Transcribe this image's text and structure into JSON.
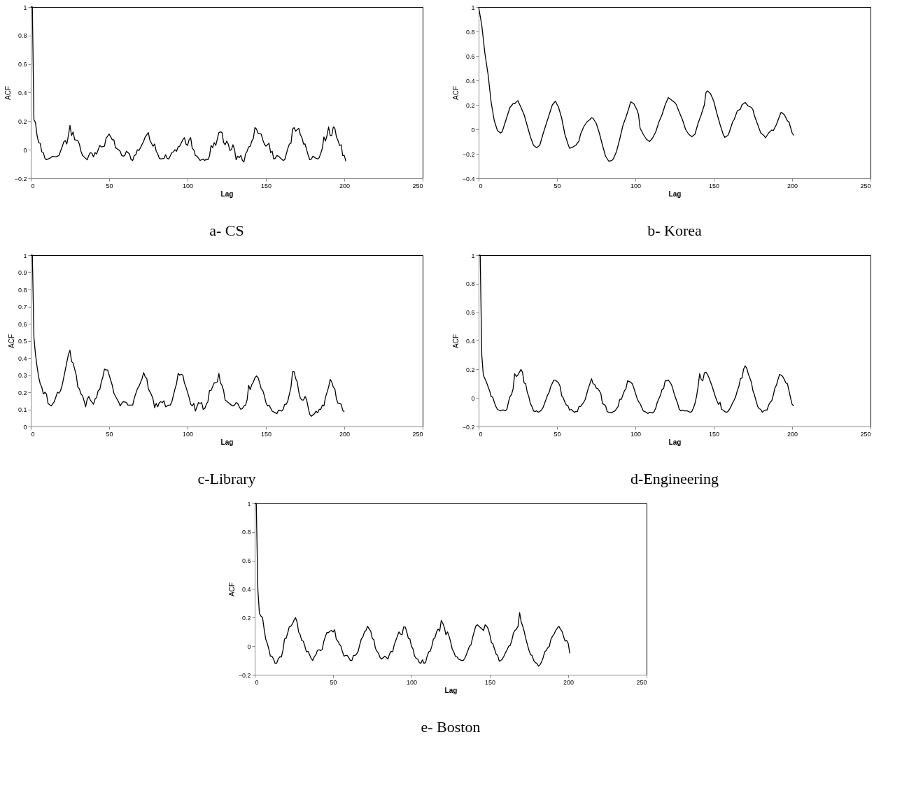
{
  "chart_data": [
    {
      "type": "line",
      "title": "a- CS",
      "xlabel": "Lag",
      "ylabel": "ACF",
      "xlim": [
        0,
        250
      ],
      "xticks": [
        0,
        50,
        100,
        150,
        200,
        250
      ],
      "ylim": [
        -0.2,
        1
      ],
      "yticks": [
        -0.2,
        0,
        0.2,
        0.4,
        0.6,
        0.8,
        1
      ],
      "x": [
        0,
        1,
        2,
        3,
        4,
        5,
        6,
        7,
        8,
        9,
        10,
        12,
        14,
        16,
        18,
        20,
        21,
        22,
        23,
        24,
        25,
        26,
        27,
        28,
        30,
        31,
        32,
        33,
        34,
        36,
        37,
        38,
        39,
        40,
        41,
        42,
        44,
        45,
        47,
        48,
        50,
        52,
        53,
        54,
        56,
        57,
        58,
        59,
        60,
        61,
        62,
        63,
        64,
        65,
        66,
        67,
        68,
        69,
        70,
        72,
        73,
        75,
        76,
        77,
        78,
        79,
        80,
        81,
        82,
        83,
        85,
        86,
        87,
        88,
        90,
        91,
        92,
        93,
        94,
        95,
        97,
        98,
        99,
        100,
        101,
        102,
        103,
        104,
        105,
        106,
        108,
        110,
        111,
        112,
        113,
        114,
        115,
        116,
        117,
        118,
        120,
        121,
        122,
        123,
        124,
        125,
        126,
        127,
        128,
        129,
        130,
        131,
        132,
        133,
        134,
        135,
        136,
        137,
        138,
        139,
        140,
        141,
        142,
        143,
        144,
        145,
        147,
        148,
        149,
        150,
        151,
        152,
        153,
        154,
        155,
        156,
        157,
        158,
        160,
        161,
        162,
        164,
        165,
        166,
        167,
        168,
        169,
        170,
        171,
        172,
        173,
        174,
        175,
        176,
        177,
        178,
        179,
        180,
        182,
        183,
        184,
        185,
        186,
        187,
        188,
        189,
        190,
        191,
        192,
        193,
        194,
        195,
        196,
        197,
        198,
        199,
        200,
        201
      ],
      "series": [
        {
          "color": "#000000",
          "values": [
            1,
            1,
            0.21,
            0.19,
            0.1,
            0.05,
            0.045,
            -0.015,
            -0.02,
            -0.06,
            -0.07,
            -0.06,
            -0.045,
            -0.05,
            -0.04,
            0.02,
            0.055,
            0.065,
            0.04,
            0.1,
            0.17,
            0.1,
            0.125,
            0.07,
            0.065,
            0.04,
            -0.01,
            -0.04,
            -0.05,
            -0.07,
            -0.04,
            -0.02,
            -0.025,
            -0.05,
            -0.02,
            -0.03,
            0.03,
            0.02,
            0.025,
            0.08,
            0.11,
            0.07,
            0.07,
            0.015,
            0,
            -0.01,
            -0.04,
            -0.045,
            -0.04,
            -0.01,
            -0.02,
            -0.03,
            -0.07,
            -0.075,
            -0.04,
            -0.035,
            0,
            -0.005,
            0.015,
            0.06,
            0.09,
            0.12,
            0.065,
            0.045,
            0.025,
            0.04,
            -0.01,
            -0.03,
            -0.06,
            -0.065,
            -0.06,
            -0.035,
            -0.06,
            -0.065,
            -0.02,
            -0.015,
            0,
            -0.01,
            0.02,
            0.025,
            0.07,
            0.085,
            0.04,
            0.03,
            0.07,
            0.085,
            0.01,
            0,
            -0.04,
            -0.045,
            -0.075,
            -0.065,
            -0.075,
            -0.065,
            -0.07,
            -0.045,
            0.03,
            0.015,
            0.05,
            0.03,
            0.12,
            0.125,
            0.12,
            0.05,
            0.035,
            0.06,
            0.04,
            -0.005,
            0,
            0.035,
            0,
            -0.07,
            -0.045,
            -0.055,
            -0.04,
            -0.075,
            -0.085,
            -0.03,
            -0.01,
            0.02,
            0.025,
            0.06,
            0.08,
            0.155,
            0.145,
            0.115,
            0.11,
            0.07,
            0.04,
            0.025,
            0.035,
            0.045,
            -0.02,
            -0.01,
            -0.065,
            -0.06,
            -0.04,
            -0.045,
            -0.065,
            -0.075,
            -0.07,
            0.01,
            0.04,
            0.045,
            0.145,
            0.155,
            0.13,
            0.14,
            0.15,
            0.105,
            0.085,
            0.04,
            0.04,
            0,
            -0.04,
            -0.07,
            -0.065,
            -0.045,
            -0.06,
            -0.065,
            -0.055,
            -0.025,
            0.01,
            0.09,
            0.06,
            0.1,
            0.16,
            0.1,
            0.1,
            0.16,
            0.15,
            0.09,
            0.065,
            0.03,
            0.035,
            -0.04,
            -0.04,
            -0.08
          ]
        }
      ]
    },
    {
      "type": "line",
      "title": "b- Korea",
      "xlabel": "Lag",
      "ylabel": "ACF",
      "xlim": [
        0,
        250
      ],
      "xticks": [
        0,
        50,
        100,
        150,
        200,
        250
      ],
      "ylim": [
        -0.4,
        1
      ],
      "yticks": [
        -0.4,
        -0.2,
        0,
        0.2,
        0.4,
        0.6,
        0.8,
        1
      ],
      "x": [
        0,
        2,
        4,
        6,
        8,
        10,
        12,
        14,
        15,
        16,
        18,
        20,
        22,
        23,
        25,
        27,
        29,
        31,
        33,
        35,
        37,
        39,
        41,
        43,
        45,
        47,
        49,
        51,
        53,
        55,
        57,
        58,
        60,
        62,
        64,
        65,
        67,
        69,
        71,
        72,
        73,
        75,
        77,
        79,
        81,
        83,
        85,
        86,
        88,
        90,
        92,
        94,
        96,
        97,
        99,
        101,
        102,
        103,
        105,
        107,
        109,
        111,
        113,
        115,
        117,
        119,
        121,
        123,
        125,
        126,
        128,
        130,
        132,
        134,
        136,
        138,
        140,
        142,
        144,
        145,
        146,
        148,
        150,
        152,
        154,
        156,
        157,
        159,
        160,
        162,
        163,
        165,
        167,
        168,
        170,
        172,
        174,
        175,
        176,
        178,
        180,
        182,
        183,
        185,
        187,
        188,
        190,
        192,
        193,
        195,
        197,
        198,
        200,
        201
      ],
      "series": [
        {
          "color": "#000000",
          "values": [
            1,
            0.85,
            0.62,
            0.45,
            0.22,
            0.07,
            -0.01,
            -0.03,
            -0.02,
            0.02,
            0.1,
            0.18,
            0.21,
            0.21,
            0.235,
            0.18,
            0.12,
            0.03,
            -0.06,
            -0.13,
            -0.15,
            -0.13,
            -0.04,
            0.04,
            0.12,
            0.2,
            0.23,
            0.18,
            0.09,
            -0.04,
            -0.12,
            -0.155,
            -0.145,
            -0.13,
            -0.095,
            -0.04,
            0.02,
            0.06,
            0.08,
            0.095,
            0.09,
            0.05,
            -0.03,
            -0.13,
            -0.22,
            -0.26,
            -0.255,
            -0.24,
            -0.18,
            -0.08,
            0.03,
            0.1,
            0.18,
            0.225,
            0.21,
            0.16,
            0.12,
            0.01,
            -0.04,
            -0.08,
            -0.1,
            -0.07,
            -0.02,
            0.06,
            0.12,
            0.2,
            0.26,
            0.24,
            0.22,
            0.205,
            0.14,
            0.08,
            0,
            -0.04,
            -0.06,
            -0.04,
            0.05,
            0.12,
            0.2,
            0.3,
            0.315,
            0.29,
            0.23,
            0.13,
            0.04,
            -0.04,
            -0.065,
            -0.05,
            -0.02,
            0.06,
            0.08,
            0.15,
            0.165,
            0.2,
            0.22,
            0.19,
            0.18,
            0.16,
            0.11,
            0.04,
            -0.03,
            -0.05,
            -0.07,
            -0.03,
            -0.005,
            -0.01,
            0.04,
            0.11,
            0.14,
            0.12,
            0.07,
            0.06,
            -0.03,
            -0.05
          ]
        }
      ]
    },
    {
      "type": "line",
      "title": "c-Library",
      "xlabel": "Lag",
      "ylabel": "ACF",
      "xlim": [
        0,
        250
      ],
      "xticks": [
        0,
        50,
        100,
        150,
        200,
        250
      ],
      "ylim": [
        0,
        1
      ],
      "yticks": [
        0,
        0.1,
        0.2,
        0.3,
        0.4,
        0.5,
        0.6,
        0.7,
        0.8,
        0.9,
        1
      ],
      "x": [
        0,
        1,
        2,
        3,
        4,
        5,
        6,
        7,
        8,
        9,
        10,
        11,
        13,
        15,
        17,
        18,
        19,
        20,
        22,
        24,
        25,
        26,
        27,
        29,
        30,
        31,
        32,
        33,
        34,
        35,
        36,
        37,
        38,
        40,
        41,
        42,
        43,
        44,
        45,
        46,
        47,
        48,
        49,
        50,
        52,
        53,
        55,
        56,
        57,
        58,
        59,
        61,
        62,
        63,
        65,
        66,
        68,
        69,
        71,
        72,
        73,
        74,
        75,
        77,
        78,
        79,
        80,
        81,
        82,
        83,
        84,
        85,
        86,
        88,
        89,
        90,
        92,
        93,
        94,
        95,
        96,
        97,
        98,
        99,
        101,
        102,
        103,
        104,
        105,
        106,
        107,
        108,
        109,
        110,
        111,
        112,
        113,
        114,
        115,
        117,
        118,
        119,
        120,
        121,
        122,
        123,
        124,
        126,
        128,
        129,
        130,
        131,
        132,
        133,
        134,
        135,
        136,
        137,
        138,
        139,
        140,
        141,
        142,
        143,
        144,
        145,
        146,
        147,
        148,
        149,
        150,
        151,
        152,
        154,
        155,
        156,
        157,
        158,
        159,
        160,
        161,
        162,
        163,
        164,
        165,
        166,
        167,
        168,
        169,
        170,
        171,
        172,
        173,
        174,
        175,
        176,
        177,
        178,
        179,
        181,
        182,
        183,
        184,
        185,
        186,
        187,
        188,
        190,
        191,
        192,
        193,
        194,
        195,
        196,
        197,
        198,
        199,
        200
      ],
      "series": [
        {
          "color": "#000000",
          "values": [
            1,
            1,
            0.52,
            0.42,
            0.35,
            0.29,
            0.25,
            0.23,
            0.19,
            0.2,
            0.19,
            0.135,
            0.12,
            0.145,
            0.2,
            0.195,
            0.21,
            0.24,
            0.33,
            0.42,
            0.445,
            0.38,
            0.37,
            0.3,
            0.23,
            0.22,
            0.19,
            0.18,
            0.15,
            0.115,
            0.16,
            0.175,
            0.155,
            0.13,
            0.16,
            0.17,
            0.21,
            0.215,
            0.26,
            0.29,
            0.335,
            0.33,
            0.33,
            0.3,
            0.24,
            0.195,
            0.16,
            0.145,
            0.12,
            0.135,
            0.145,
            0.14,
            0.125,
            0.125,
            0.125,
            0.165,
            0.22,
            0.235,
            0.28,
            0.315,
            0.29,
            0.28,
            0.22,
            0.185,
            0.16,
            0.11,
            0.135,
            0.115,
            0.14,
            0.145,
            0.14,
            0.15,
            0.115,
            0.125,
            0.125,
            0.145,
            0.22,
            0.25,
            0.31,
            0.3,
            0.305,
            0.3,
            0.255,
            0.23,
            0.17,
            0.13,
            0.12,
            0.135,
            0.09,
            0.115,
            0.14,
            0.135,
            0.14,
            0.1,
            0.105,
            0.13,
            0.145,
            0.21,
            0.21,
            0.255,
            0.255,
            0.26,
            0.31,
            0.255,
            0.24,
            0.21,
            0.155,
            0.14,
            0.125,
            0.12,
            0.125,
            0.14,
            0.135,
            0.115,
            0.1,
            0.105,
            0.12,
            0.125,
            0.155,
            0.24,
            0.215,
            0.245,
            0.26,
            0.285,
            0.295,
            0.285,
            0.255,
            0.22,
            0.21,
            0.18,
            0.14,
            0.12,
            0.125,
            0.09,
            0.085,
            0.08,
            0.075,
            0.095,
            0.095,
            0.09,
            0.1,
            0.13,
            0.13,
            0.15,
            0.19,
            0.23,
            0.32,
            0.32,
            0.28,
            0.26,
            0.2,
            0.165,
            0.155,
            0.155,
            0.175,
            0.155,
            0.11,
            0.07,
            0.06,
            0.075,
            0.09,
            0.08,
            0.1,
            0.1,
            0.125,
            0.12,
            0.17,
            0.23,
            0.275,
            0.26,
            0.23,
            0.22,
            0.16,
            0.135,
            0.135,
            0.13,
            0.095,
            0.085
          ]
        }
      ]
    },
    {
      "type": "line",
      "title": "d-Engineering",
      "xlabel": "Lag",
      "ylabel": "ACF",
      "xlim": [
        0,
        250
      ],
      "xticks": [
        0,
        50,
        100,
        150,
        200,
        250
      ],
      "ylim": [
        -0.2,
        1
      ],
      "yticks": [
        -0.2,
        0,
        0.2,
        0.4,
        0.6,
        0.8,
        1
      ],
      "x": [
        0,
        1,
        2,
        3,
        5,
        7,
        8,
        9,
        10,
        11,
        12,
        14,
        15,
        16,
        17,
        18,
        19,
        20,
        21,
        22,
        23,
        24,
        25,
        27,
        28,
        29,
        30,
        31,
        32,
        33,
        34,
        35,
        36,
        37,
        38,
        39,
        40,
        41,
        42,
        43,
        44,
        45,
        46,
        48,
        49,
        50,
        51,
        52,
        53,
        54,
        55,
        56,
        57,
        58,
        59,
        60,
        61,
        62,
        63,
        64,
        65,
        67,
        68,
        69,
        70,
        71,
        72,
        73,
        74,
        75,
        76,
        77,
        78,
        79,
        80,
        81,
        82,
        83,
        84,
        85,
        86,
        87,
        88,
        89,
        90,
        91,
        92,
        93,
        94,
        95,
        96,
        97,
        98,
        99,
        100,
        101,
        102,
        103,
        104,
        105,
        106,
        107,
        108,
        109,
        110,
        111,
        112,
        113,
        114,
        115,
        116,
        117,
        118,
        119,
        120,
        121,
        122,
        123,
        124,
        125,
        126,
        127,
        128,
        129,
        130,
        131,
        132,
        133,
        134,
        135,
        136,
        137,
        138,
        139,
        140,
        141,
        142,
        143,
        144,
        145,
        146,
        147,
        148,
        149,
        150,
        151,
        152,
        153,
        154,
        155,
        156,
        157,
        158,
        159,
        160,
        161,
        162,
        163,
        164,
        165,
        166,
        167,
        168,
        169,
        170,
        171,
        172,
        173,
        174,
        175,
        176,
        177,
        178,
        179,
        180,
        181,
        182,
        183,
        184,
        185,
        186,
        187,
        188,
        189,
        190,
        191,
        192,
        193,
        194,
        195,
        196,
        197,
        198,
        199,
        200,
        201
      ],
      "series": [
        {
          "color": "#000000",
          "values": [
            1,
            1,
            0.3,
            0.16,
            0.11,
            0.05,
            0.01,
            0.005,
            -0.03,
            -0.06,
            -0.08,
            -0.09,
            -0.085,
            -0.085,
            -0.09,
            -0.08,
            -0.03,
            0.01,
            0.025,
            0.065,
            0.17,
            0.15,
            0.16,
            0.2,
            0.18,
            0.105,
            0.1,
            0.04,
            0.01,
            -0.04,
            -0.06,
            -0.09,
            -0.095,
            -0.09,
            -0.1,
            -0.095,
            -0.085,
            -0.07,
            -0.04,
            -0.01,
            0.02,
            0.04,
            0.08,
            0.125,
            0.125,
            0.115,
            0.105,
            0.08,
            0.015,
            0,
            -0.03,
            -0.05,
            -0.055,
            -0.085,
            -0.08,
            -0.09,
            -0.1,
            -0.095,
            -0.095,
            -0.06,
            -0.06,
            -0.03,
            -0.01,
            0.03,
            0.07,
            0.1,
            0.135,
            0.1,
            0.095,
            0.07,
            0.065,
            0.05,
            0.03,
            -0.04,
            -0.045,
            -0.055,
            -0.095,
            -0.1,
            -0.1,
            -0.105,
            -0.095,
            -0.09,
            -0.075,
            -0.06,
            -0.01,
            -0.01,
            0.02,
            0.05,
            0.065,
            0.12,
            0.115,
            0.11,
            0.1,
            0.07,
            0.035,
            0,
            -0.025,
            -0.04,
            -0.065,
            -0.09,
            -0.095,
            -0.1,
            -0.11,
            -0.1,
            -0.1,
            -0.105,
            -0.095,
            -0.07,
            -0.03,
            -0.005,
            0.02,
            0.06,
            0.065,
            0.12,
            0.12,
            0.125,
            0.11,
            0.095,
            0.06,
            0.02,
            -0.01,
            -0.04,
            -0.08,
            -0.09,
            -0.085,
            -0.09,
            -0.09,
            -0.09,
            -0.095,
            -0.1,
            -0.095,
            -0.07,
            -0.04,
            0.01,
            0.08,
            0.17,
            0.13,
            0.12,
            0.175,
            0.18,
            0.165,
            0.14,
            0.11,
            0.08,
            0.045,
            0.01,
            -0.02,
            -0.045,
            -0.03,
            -0.08,
            -0.085,
            -0.095,
            -0.1,
            -0.095,
            -0.08,
            -0.06,
            -0.035,
            -0.015,
            0.01,
            0.05,
            0.08,
            0.135,
            0.14,
            0.2,
            0.225,
            0.21,
            0.17,
            0.14,
            0.11,
            0.05,
            0.02,
            -0.02,
            -0.06,
            -0.075,
            -0.08,
            -0.1,
            -0.09,
            -0.085,
            -0.085,
            -0.05,
            -0.03,
            -0.02,
            0.02,
            0.07,
            0.09,
            0.13,
            0.165,
            0.16,
            0.15,
            0.13,
            0.105,
            0.1,
            0.05,
            0,
            -0.045,
            -0.055
          ]
        }
      ]
    },
    {
      "type": "line",
      "title": "e- Boston",
      "xlabel": "Lag",
      "ylabel": "ACF",
      "xlim": [
        0,
        250
      ],
      "xticks": [
        0,
        50,
        100,
        150,
        200,
        250
      ],
      "ylim": [
        -0.2,
        1
      ],
      "yticks": [
        -0.2,
        0,
        0.2,
        0.4,
        0.6,
        0.8,
        1
      ],
      "x": [
        0,
        1,
        2,
        3,
        4,
        5,
        6,
        7,
        8,
        9,
        10,
        11,
        12,
        13,
        14,
        15,
        16,
        17,
        18,
        19,
        20,
        21,
        22,
        23,
        24,
        25,
        26,
        27,
        28,
        29,
        30,
        31,
        32,
        33,
        34,
        35,
        36,
        37,
        38,
        39,
        40,
        41,
        42,
        43,
        44,
        45,
        46,
        47,
        48,
        49,
        50,
        51,
        52,
        53,
        54,
        55,
        56,
        57,
        58,
        59,
        60,
        61,
        62,
        63,
        64,
        65,
        66,
        67,
        68,
        69,
        70,
        71,
        72,
        73,
        74,
        75,
        76,
        77,
        78,
        79,
        80,
        81,
        82,
        83,
        84,
        85,
        86,
        87,
        88,
        89,
        90,
        91,
        92,
        93,
        94,
        95,
        96,
        97,
        98,
        99,
        100,
        101,
        102,
        103,
        104,
        105,
        106,
        107,
        108,
        109,
        110,
        111,
        112,
        113,
        114,
        115,
        116,
        117,
        118,
        119,
        120,
        121,
        122,
        123,
        124,
        125,
        126,
        127,
        128,
        129,
        130,
        131,
        132,
        133,
        134,
        135,
        136,
        137,
        138,
        139,
        140,
        141,
        142,
        146,
        147,
        148,
        149,
        150,
        151,
        152,
        153,
        154,
        155,
        156,
        157,
        158,
        159,
        160,
        161,
        162,
        163,
        164,
        165,
        166,
        167,
        168,
        169,
        170,
        171,
        172,
        173,
        174,
        175,
        176,
        177,
        178,
        179,
        180,
        181,
        182,
        183,
        184,
        185,
        186,
        187,
        188,
        189,
        190,
        191,
        192,
        193,
        194,
        195,
        196,
        197,
        198,
        199,
        200,
        201
      ],
      "series": [
        {
          "color": "#000000",
          "values": [
            1,
            1,
            0.4,
            0.23,
            0.21,
            0.2,
            0.12,
            0.05,
            0.02,
            -0.02,
            -0.07,
            -0.07,
            -0.09,
            -0.12,
            -0.12,
            -0.09,
            -0.075,
            -0.075,
            -0.03,
            0.05,
            0.055,
            0.09,
            0.135,
            0.14,
            0.155,
            0.18,
            0.2,
            0.17,
            0.1,
            0.08,
            0.04,
            0.035,
            0,
            -0.04,
            -0.035,
            -0.06,
            -0.085,
            -0.1,
            -0.075,
            -0.06,
            -0.03,
            -0.025,
            -0.03,
            -0.025,
            0.03,
            0.065,
            0.095,
            0.095,
            0.105,
            0.11,
            0.1,
            0.115,
            0.05,
            0.035,
            0.015,
            0,
            -0.04,
            -0.07,
            -0.065,
            -0.065,
            -0.08,
            -0.1,
            -0.1,
            -0.065,
            -0.065,
            -0.055,
            -0.035,
            0.01,
            0.05,
            0.065,
            0.1,
            0.11,
            0.14,
            0.12,
            0.105,
            0.055,
            0.045,
            -0.015,
            -0.035,
            -0.05,
            -0.08,
            -0.09,
            -0.08,
            -0.07,
            -0.08,
            -0.09,
            -0.055,
            -0.035,
            -0.04,
            0.01,
            0.04,
            0.07,
            0.1,
            0.085,
            0.08,
            0.135,
            0.135,
            0.1,
            0.055,
            0.05,
            0,
            -0.02,
            -0.07,
            -0.085,
            -0.09,
            -0.115,
            -0.12,
            -0.095,
            -0.12,
            -0.115,
            -0.07,
            -0.04,
            -0.035,
            0,
            0.05,
            0.06,
            0.1,
            0.12,
            0.105,
            0.18,
            0.16,
            0.13,
            0.08,
            0.1,
            0.07,
            0.03,
            -0.02,
            -0.04,
            -0.07,
            -0.075,
            -0.09,
            -0.095,
            -0.1,
            -0.1,
            -0.085,
            -0.06,
            -0.03,
            0,
            0.01,
            0.06,
            0.1,
            0.14,
            0.15,
            0.11,
            0.15,
            0.14,
            0.12,
            0.08,
            0.025,
            0.015,
            -0.02,
            -0.055,
            -0.065,
            -0.105,
            -0.1,
            -0.09,
            -0.07,
            -0.045,
            -0.025,
            0,
            0.005,
            0.04,
            0.09,
            0.11,
            0.12,
            0.14,
            0.235,
            0.17,
            0.14,
            0.1,
            0.05,
            0.01,
            -0.03,
            -0.06,
            -0.065,
            -0.1,
            -0.115,
            -0.12,
            -0.14,
            -0.13,
            -0.11,
            -0.08,
            -0.04,
            -0.03,
            -0.01,
            0,
            0.05,
            0.07,
            0.085,
            0.11,
            0.125,
            0.14,
            0.12,
            0.105,
            0.07,
            0.035,
            0.04,
            0.02,
            -0.05
          ]
        }
      ]
    }
  ]
}
